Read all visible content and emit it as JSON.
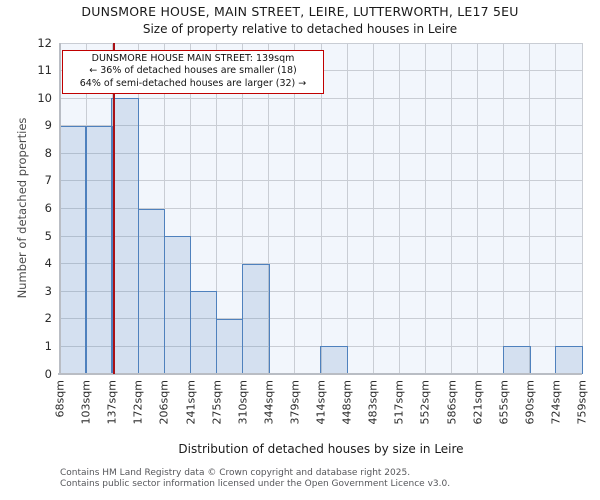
{
  "header": {
    "title": "DUNSMORE HOUSE, MAIN STREET, LEIRE, LUTTERWORTH, LE17 5EU",
    "subtitle": "Size of property relative to detached houses in Leire"
  },
  "annotation": {
    "line1": "DUNSMORE HOUSE MAIN STREET: 139sqm",
    "line2": "← 36% of detached houses are smaller (18)",
    "line3": "64% of semi-detached houses are larger (32) →"
  },
  "chart_data": {
    "type": "bar",
    "title": "Size of property relative to detached houses in Leire",
    "xlabel": "Distribution of detached houses by size in Leire",
    "ylabel": "Number of detached properties",
    "bin_edges_sqm": [
      68,
      103,
      137,
      172,
      206,
      241,
      275,
      310,
      344,
      379,
      414,
      448,
      483,
      517,
      552,
      586,
      621,
      655,
      690,
      724,
      759
    ],
    "x_tick_labels": [
      "68sqm",
      "103sqm",
      "137sqm",
      "172sqm",
      "206sqm",
      "241sqm",
      "275sqm",
      "310sqm",
      "344sqm",
      "379sqm",
      "414sqm",
      "448sqm",
      "483sqm",
      "517sqm",
      "552sqm",
      "586sqm",
      "621sqm",
      "655sqm",
      "690sqm",
      "724sqm",
      "759sqm"
    ],
    "values": [
      9,
      9,
      10,
      6,
      5,
      3,
      2,
      4,
      0,
      0,
      1,
      0,
      0,
      0,
      0,
      0,
      0,
      1,
      0,
      1
    ],
    "y_ticks": [
      0,
      1,
      2,
      3,
      4,
      5,
      6,
      7,
      8,
      9,
      10,
      11,
      12
    ],
    "ylim": [
      0,
      12
    ],
    "grid": true,
    "legend": "none",
    "marker_value_sqm": 139,
    "colors": {
      "bar_edge": "#4f81bd",
      "bar_fill": "rgba(79,129,189,0.18)",
      "plot_bg": "#f2f6fc",
      "grid": "#c9cdd4",
      "marker_line": "#aa1116",
      "annotation_border": "#c00000"
    }
  },
  "footer": {
    "line1": "Contains HM Land Registry data © Crown copyright and database right 2025.",
    "line2": "Contains public sector information licensed under the Open Government Licence v3.0."
  }
}
